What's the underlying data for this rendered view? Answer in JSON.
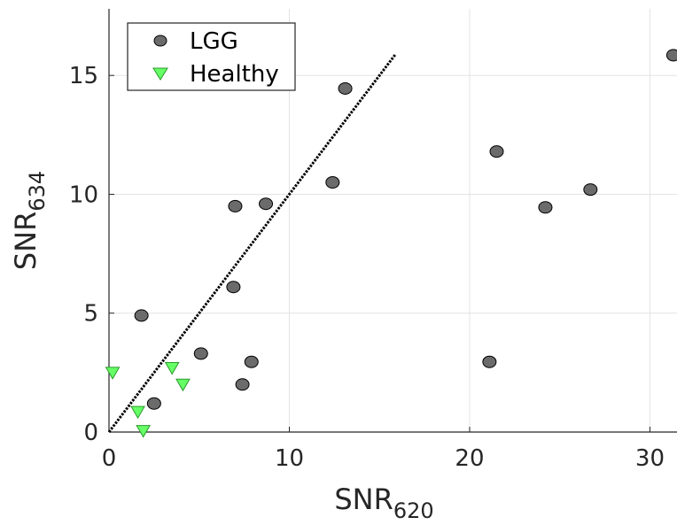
{
  "chart_data": {
    "type": "scatter",
    "xlabel": {
      "base": "SNR",
      "sub": "620"
    },
    "ylabel": {
      "base": "SNR",
      "sub": "634"
    },
    "xlim": [
      0,
      31.5
    ],
    "ylim": [
      0,
      17.8
    ],
    "xticks": [
      0,
      10,
      20,
      30
    ],
    "yticks": [
      0,
      5,
      10,
      15
    ],
    "grid": true,
    "legend_position": "top-left",
    "series": [
      {
        "name": "LGG",
        "marker": "circle",
        "color": "#6b6b6b",
        "points": [
          {
            "x": 1.8,
            "y": 4.9
          },
          {
            "x": 2.5,
            "y": 1.2
          },
          {
            "x": 5.1,
            "y": 3.3
          },
          {
            "x": 6.9,
            "y": 6.1
          },
          {
            "x": 7.0,
            "y": 9.5
          },
          {
            "x": 7.4,
            "y": 2.0
          },
          {
            "x": 7.9,
            "y": 2.95
          },
          {
            "x": 8.7,
            "y": 9.6
          },
          {
            "x": 12.4,
            "y": 10.5
          },
          {
            "x": 13.1,
            "y": 14.45
          },
          {
            "x": 21.1,
            "y": 2.95
          },
          {
            "x": 21.5,
            "y": 11.8
          },
          {
            "x": 24.2,
            "y": 9.45
          },
          {
            "x": 26.7,
            "y": 10.2
          },
          {
            "x": 31.3,
            "y": 15.85
          }
        ]
      },
      {
        "name": "Healthy",
        "marker": "triangle-down",
        "color": "#66ff66",
        "points": [
          {
            "x": 0.2,
            "y": 2.5
          },
          {
            "x": 1.6,
            "y": 0.85
          },
          {
            "x": 1.9,
            "y": 0.05
          },
          {
            "x": 3.5,
            "y": 2.7
          },
          {
            "x": 4.1,
            "y": 2.0
          }
        ]
      }
    ],
    "reference_line": {
      "style": "dotted",
      "color": "#000000",
      "from": [
        0,
        0
      ],
      "to": [
        15.9,
        15.9
      ]
    }
  }
}
